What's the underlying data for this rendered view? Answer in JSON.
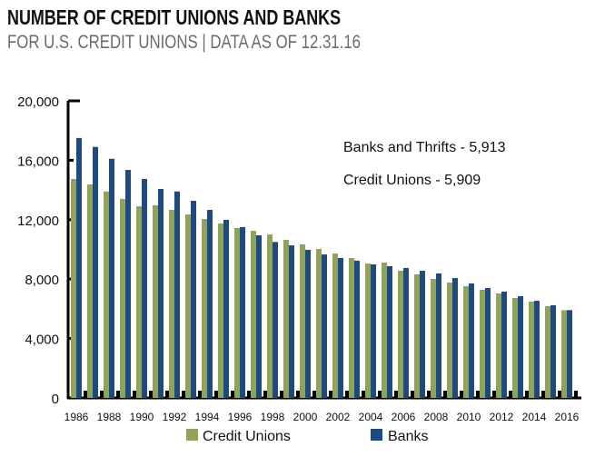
{
  "chart_data": {
    "type": "bar",
    "title": "NUMBER OF CREDIT UNIONS AND BANKS",
    "subtitle": "FOR U.S. CREDIT UNIONS | DATA AS OF 12.31.16",
    "xlabel": "",
    "ylabel": "",
    "ylim": [
      0,
      20000
    ],
    "yticks": [
      0,
      4000,
      8000,
      12000,
      16000,
      20000
    ],
    "ytick_labels": [
      "0",
      "4,000",
      "8,000",
      "12,000",
      "16,000",
      "20,000"
    ],
    "categories": [
      "1986",
      "1987",
      "1988",
      "1989",
      "1990",
      "1991",
      "1992",
      "1993",
      "1994",
      "1995",
      "1996",
      "1997",
      "1998",
      "1999",
      "2000",
      "2001",
      "2002",
      "2003",
      "2004",
      "2005",
      "2006",
      "2007",
      "2008",
      "2009",
      "2010",
      "2011",
      "2012",
      "2013",
      "2014",
      "2015",
      "2016"
    ],
    "xtick_labels": [
      "1986",
      "1988",
      "1990",
      "1992",
      "1994",
      "1996",
      "1998",
      "2000",
      "2002",
      "2004",
      "2006",
      "2008",
      "2010",
      "2012",
      "2014",
      "2016"
    ],
    "series": [
      {
        "name": "Credit Unions",
        "color": "#8fa35a",
        "values": [
          14740,
          14370,
          13900,
          13400,
          12900,
          12970,
          12660,
          12350,
          12050,
          11740,
          11440,
          11250,
          11000,
          10640,
          10340,
          10030,
          9720,
          9420,
          9050,
          9110,
          8560,
          8320,
          8010,
          7770,
          7520,
          7280,
          7030,
          6730,
          6480,
          6180,
          5909
        ]
      },
      {
        "name": "Banks",
        "color": "#1f4a7e",
        "values": [
          17500,
          16900,
          16100,
          15350,
          14740,
          14070,
          13900,
          13270,
          12660,
          11990,
          11500,
          10950,
          10500,
          10270,
          9970,
          9660,
          9420,
          9240,
          8990,
          8870,
          8750,
          8560,
          8380,
          8070,
          7710,
          7400,
          7160,
          6850,
          6540,
          6240,
          5913
        ]
      }
    ],
    "annotations": [
      "Banks and Thrifts - 5,913",
      "Credit Unions - 5,909"
    ],
    "legend": {
      "placement": "bottom",
      "entries": [
        "Credit Unions",
        "Banks"
      ]
    },
    "grid": false
  }
}
